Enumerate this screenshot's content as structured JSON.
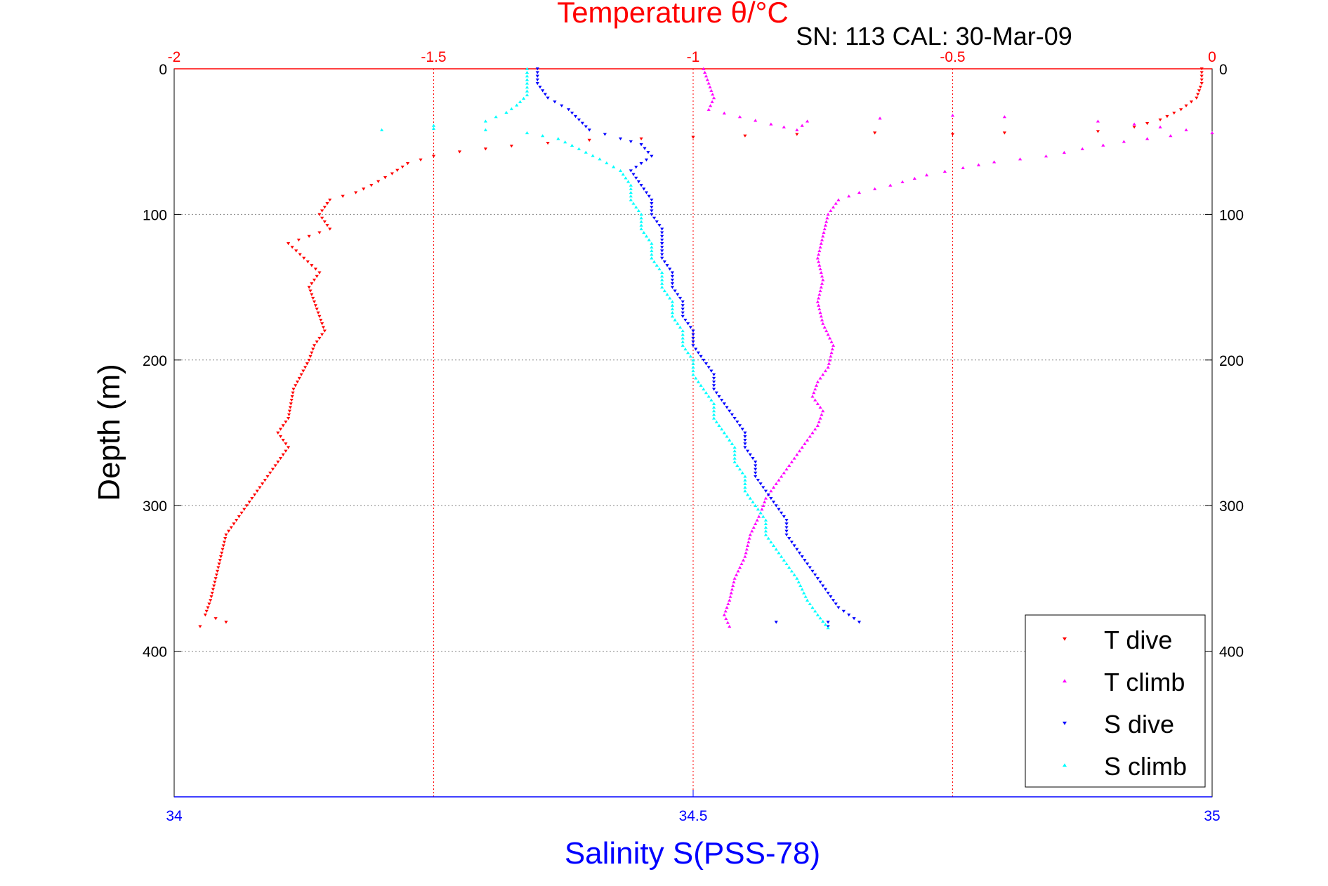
{
  "chart_data": {
    "type": "scatter",
    "title": "Temperature θ/°C",
    "subtitle": "SN: 113  CAL: 30-Mar-09",
    "ylabel": "Depth (m)",
    "xlabel_bottom": "Salinity S(PSS-78)",
    "xlabel_top": "Temperature θ/°C",
    "ylim": [
      0,
      500
    ],
    "y_inverted": true,
    "x_bottom_lim": [
      34,
      35
    ],
    "x_top_lim": [
      -2,
      0
    ],
    "x_bottom_ticks": [
      "34",
      "34.5",
      "35"
    ],
    "x_top_ticks": [
      "-2",
      "-1.5",
      "-1",
      "-0.5",
      "0"
    ],
    "y_ticks": [
      "0",
      "100",
      "200",
      "300",
      "400"
    ],
    "grid": true,
    "legend_placement": "bottom-right",
    "series": [
      {
        "name": "T dive",
        "axis": "top",
        "color": "#ff0000",
        "marker": "triangle-down",
        "points": [
          [
            -0.02,
            0
          ],
          [
            -0.02,
            10
          ],
          [
            -0.03,
            20
          ],
          [
            -0.06,
            28
          ],
          [
            -0.1,
            35
          ],
          [
            -0.15,
            40
          ],
          [
            -0.22,
            43
          ],
          [
            -0.4,
            44
          ],
          [
            -0.5,
            45
          ],
          [
            -0.65,
            44
          ],
          [
            -0.8,
            45
          ],
          [
            -0.9,
            46
          ],
          [
            -1.0,
            47
          ],
          [
            -1.1,
            48
          ],
          [
            -1.2,
            49
          ],
          [
            -1.28,
            51
          ],
          [
            -1.35,
            53
          ],
          [
            -1.4,
            55
          ],
          [
            -1.45,
            57
          ],
          [
            -1.5,
            60
          ],
          [
            -1.55,
            65
          ],
          [
            -1.58,
            72
          ],
          [
            -1.62,
            80
          ],
          [
            -1.65,
            85
          ],
          [
            -1.7,
            90
          ],
          [
            -1.72,
            100
          ],
          [
            -1.7,
            110
          ],
          [
            -1.78,
            120
          ],
          [
            -1.75,
            130
          ],
          [
            -1.72,
            140
          ],
          [
            -1.74,
            150
          ],
          [
            -1.73,
            160
          ],
          [
            -1.72,
            170
          ],
          [
            -1.71,
            180
          ],
          [
            -1.73,
            190
          ],
          [
            -1.74,
            200
          ],
          [
            -1.77,
            220
          ],
          [
            -1.78,
            240
          ],
          [
            -1.8,
            250
          ],
          [
            -1.78,
            260
          ],
          [
            -1.8,
            270
          ],
          [
            -1.82,
            280
          ],
          [
            -1.84,
            290
          ],
          [
            -1.86,
            300
          ],
          [
            -1.88,
            310
          ],
          [
            -1.9,
            320
          ],
          [
            -1.91,
            335
          ],
          [
            -1.92,
            350
          ],
          [
            -1.93,
            365
          ],
          [
            -1.94,
            375
          ],
          [
            -1.9,
            380
          ],
          [
            -1.95,
            383
          ]
        ]
      },
      {
        "name": "T climb",
        "axis": "top",
        "color": "#ff00ff",
        "marker": "triangle-up",
        "points": [
          [
            -0.93,
            383
          ],
          [
            -0.94,
            375
          ],
          [
            -0.93,
            365
          ],
          [
            -0.92,
            350
          ],
          [
            -0.9,
            335
          ],
          [
            -0.89,
            320
          ],
          [
            -0.87,
            305
          ],
          [
            -0.86,
            295
          ],
          [
            -0.84,
            285
          ],
          [
            -0.82,
            275
          ],
          [
            -0.8,
            265
          ],
          [
            -0.78,
            255
          ],
          [
            -0.76,
            245
          ],
          [
            -0.75,
            235
          ],
          [
            -0.77,
            225
          ],
          [
            -0.76,
            215
          ],
          [
            -0.74,
            205
          ],
          [
            -0.73,
            190
          ],
          [
            -0.75,
            175
          ],
          [
            -0.76,
            160
          ],
          [
            -0.75,
            145
          ],
          [
            -0.76,
            130
          ],
          [
            -0.75,
            115
          ],
          [
            -0.74,
            100
          ],
          [
            -0.72,
            90
          ],
          [
            -0.68,
            85
          ],
          [
            -0.62,
            80
          ],
          [
            -0.55,
            73
          ],
          [
            -0.48,
            68
          ],
          [
            -0.42,
            64
          ],
          [
            -0.32,
            60
          ],
          [
            -0.25,
            55
          ],
          [
            -0.17,
            50
          ],
          [
            -0.08,
            46
          ],
          [
            -0.0,
            44
          ],
          [
            -0.1,
            40
          ],
          [
            -0.15,
            38
          ],
          [
            -0.22,
            36
          ],
          [
            -0.4,
            33
          ],
          [
            -0.5,
            32
          ],
          [
            -0.78,
            36
          ],
          [
            -0.8,
            42
          ],
          [
            -0.85,
            38
          ],
          [
            -0.97,
            28
          ],
          [
            -0.96,
            20
          ],
          [
            -0.97,
            10
          ],
          [
            -0.98,
            0
          ]
        ]
      },
      {
        "name": "S dive",
        "axis": "bottom",
        "color": "#0000ff",
        "marker": "triangle-down",
        "points": [
          [
            34.35,
            0
          ],
          [
            34.35,
            10
          ],
          [
            34.36,
            20
          ],
          [
            34.38,
            28
          ],
          [
            34.39,
            35
          ],
          [
            34.4,
            42
          ],
          [
            34.43,
            48
          ],
          [
            34.45,
            52
          ],
          [
            34.46,
            60
          ],
          [
            34.44,
            70
          ],
          [
            34.45,
            80
          ],
          [
            34.46,
            90
          ],
          [
            34.46,
            100
          ],
          [
            34.47,
            110
          ],
          [
            34.47,
            120
          ],
          [
            34.47,
            130
          ],
          [
            34.48,
            140
          ],
          [
            34.48,
            150
          ],
          [
            34.49,
            160
          ],
          [
            34.49,
            170
          ],
          [
            34.5,
            180
          ],
          [
            34.5,
            190
          ],
          [
            34.51,
            200
          ],
          [
            34.52,
            210
          ],
          [
            34.52,
            220
          ],
          [
            34.53,
            230
          ],
          [
            34.54,
            240
          ],
          [
            34.55,
            250
          ],
          [
            34.55,
            260
          ],
          [
            34.56,
            270
          ],
          [
            34.56,
            280
          ],
          [
            34.57,
            290
          ],
          [
            34.58,
            300
          ],
          [
            34.59,
            310
          ],
          [
            34.59,
            320
          ],
          [
            34.6,
            330
          ],
          [
            34.61,
            340
          ],
          [
            34.62,
            350
          ],
          [
            34.63,
            360
          ],
          [
            34.64,
            370
          ],
          [
            34.66,
            380
          ],
          [
            34.63,
            380
          ],
          [
            34.58,
            380
          ],
          [
            34.63,
            383
          ]
        ]
      },
      {
        "name": "S climb",
        "axis": "bottom",
        "color": "#00ffff",
        "marker": "triangle-up",
        "points": [
          [
            34.63,
            384
          ],
          [
            34.62,
            375
          ],
          [
            34.61,
            365
          ],
          [
            34.6,
            350
          ],
          [
            34.59,
            340
          ],
          [
            34.58,
            330
          ],
          [
            34.57,
            320
          ],
          [
            34.57,
            310
          ],
          [
            34.56,
            300
          ],
          [
            34.55,
            290
          ],
          [
            34.55,
            280
          ],
          [
            34.54,
            270
          ],
          [
            34.54,
            260
          ],
          [
            34.53,
            250
          ],
          [
            34.52,
            240
          ],
          [
            34.52,
            230
          ],
          [
            34.51,
            220
          ],
          [
            34.5,
            210
          ],
          [
            34.5,
            200
          ],
          [
            34.49,
            190
          ],
          [
            34.49,
            180
          ],
          [
            34.48,
            170
          ],
          [
            34.48,
            160
          ],
          [
            34.47,
            150
          ],
          [
            34.47,
            140
          ],
          [
            34.46,
            130
          ],
          [
            34.46,
            120
          ],
          [
            34.45,
            110
          ],
          [
            34.45,
            100
          ],
          [
            34.44,
            90
          ],
          [
            34.44,
            80
          ],
          [
            34.43,
            70
          ],
          [
            34.41,
            62
          ],
          [
            34.39,
            55
          ],
          [
            34.37,
            48
          ],
          [
            34.34,
            44
          ],
          [
            34.3,
            42
          ],
          [
            34.25,
            41
          ],
          [
            34.2,
            42
          ],
          [
            34.3,
            36
          ],
          [
            34.32,
            30
          ],
          [
            34.33,
            25
          ],
          [
            34.34,
            18
          ],
          [
            34.34,
            10
          ],
          [
            34.34,
            0
          ]
        ]
      }
    ]
  }
}
